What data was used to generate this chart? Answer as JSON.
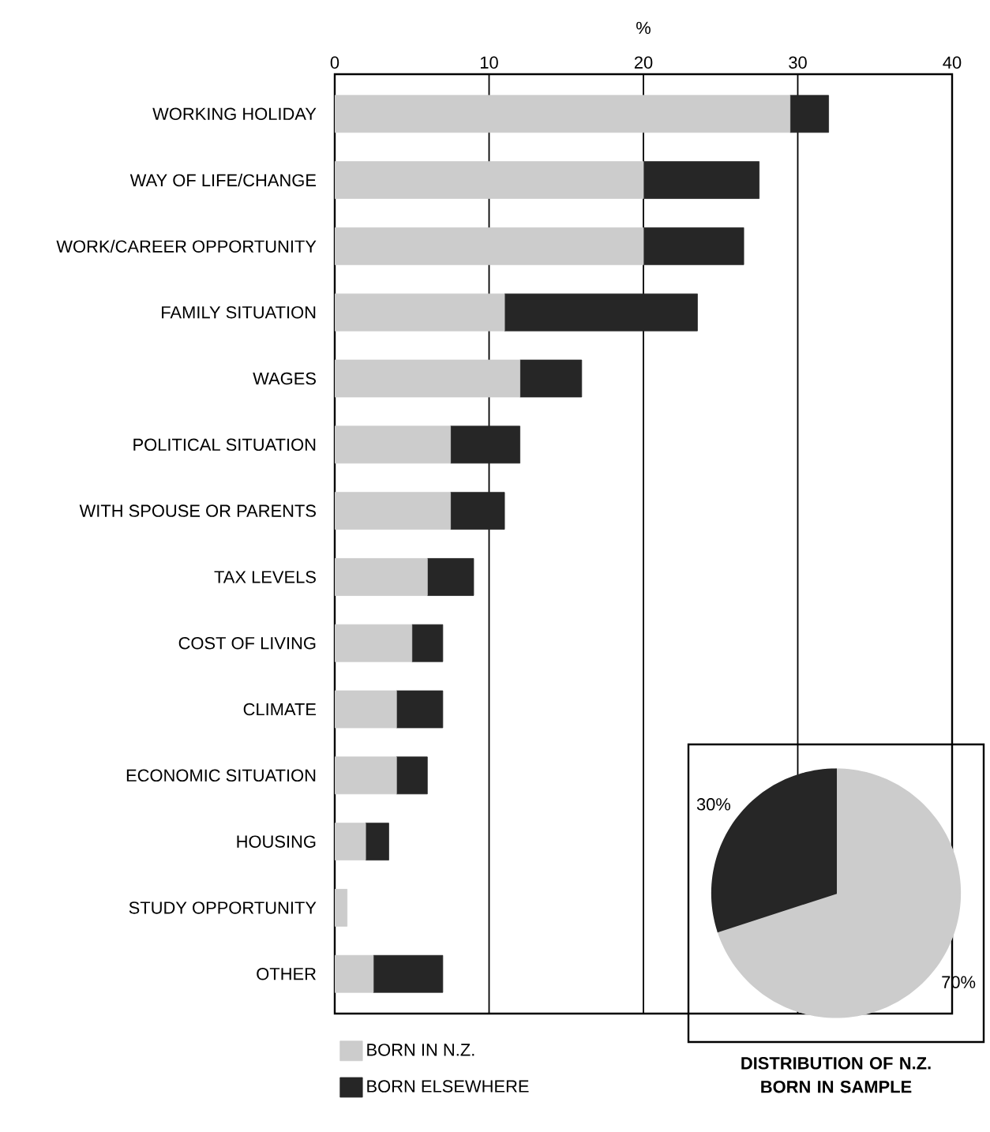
{
  "chart_data": [
    {
      "type": "bar",
      "orientation": "horizontal",
      "stacked": true,
      "xlabel": "%",
      "categories": [
        "WORKING HOLIDAY",
        "WAY OF LIFE/CHANGE",
        "WORK/CAREER OPPORTUNITY",
        "FAMILY SITUATION",
        "WAGES",
        "POLITICAL SITUATION",
        "WITH SPOUSE OR PARENTS",
        "TAX LEVELS",
        "COST OF LIVING",
        "CLIMATE",
        "ECONOMIC SITUATION",
        "HOUSING",
        "STUDY OPPORTUNITY",
        "OTHER"
      ],
      "series": [
        {
          "name": "BORN IN N.Z.",
          "color": "#cccccc",
          "values": [
            29.5,
            20,
            20,
            11,
            12,
            7.5,
            7.5,
            6,
            5,
            4,
            4,
            2,
            0.8,
            2.5
          ]
        },
        {
          "name": "BORN ELSEWHERE",
          "color": "#262626",
          "values": [
            2.5,
            7.5,
            6.5,
            12.5,
            4,
            4.5,
            3.5,
            3,
            2,
            3,
            2,
            1.5,
            null,
            4.5
          ]
        }
      ],
      "xlim": [
        0,
        40
      ],
      "xticks": [
        0,
        10,
        20,
        30,
        40
      ],
      "grid": "x",
      "legend": "bottom left"
    },
    {
      "type": "pie",
      "title": "DISTRIBUTION OF N.Z. BORN IN SAMPLE",
      "categories": [
        null,
        null
      ],
      "values": [
        70,
        30
      ],
      "colors": [
        "#cccccc",
        "#262626"
      ],
      "value_labels": [
        "70%",
        "30%"
      ]
    }
  ]
}
